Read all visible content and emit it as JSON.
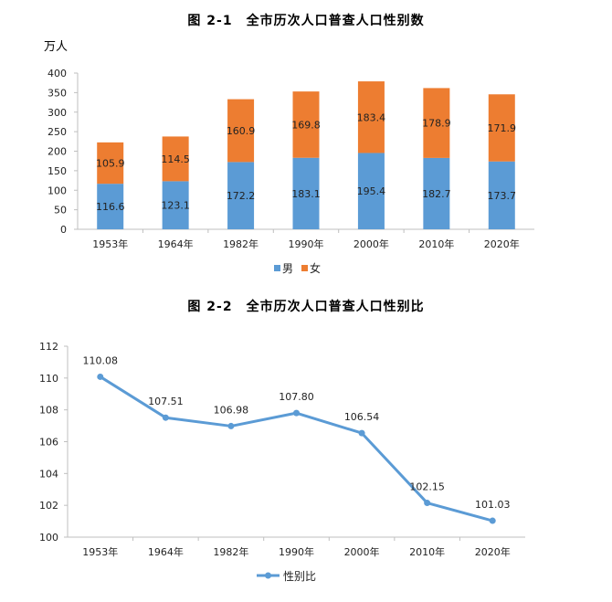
{
  "figure1": {
    "title": "图 2-1　全市历次人口普查人口性别数",
    "unit_label": "万人"
  },
  "figure2": {
    "title": "图 2-2　全市历次人口普查人口性别比"
  },
  "colors": {
    "male": "#5B9BD5",
    "female": "#ED7D31",
    "ratio_line": "#5B9BD5",
    "axis": "#BFBFBF"
  },
  "chart_data": [
    {
      "type": "bar",
      "stacked": true,
      "title": "图 2-1　全市历次人口普查人口性别数",
      "ylabel": "万人",
      "xlabel": "",
      "categories": [
        "1953年",
        "1964年",
        "1982年",
        "1990年",
        "2000年",
        "2010年",
        "2020年"
      ],
      "series": [
        {
          "name": "男",
          "values": [
            116.6,
            123.1,
            172.2,
            183.1,
            195.4,
            182.7,
            173.7
          ]
        },
        {
          "name": "女",
          "values": [
            105.9,
            114.5,
            160.9,
            169.8,
            183.4,
            178.9,
            171.9
          ]
        }
      ],
      "ylim": [
        0,
        400
      ],
      "yticks": [
        0,
        50,
        100,
        150,
        200,
        250,
        300,
        350,
        400
      ],
      "grid": false,
      "legend": "bottom"
    },
    {
      "type": "line",
      "title": "图 2-2　全市历次人口普查人口性别比",
      "xlabel": "",
      "ylabel": "",
      "categories": [
        "1953年",
        "1964年",
        "1982年",
        "1990年",
        "2000年",
        "2010年",
        "2020年"
      ],
      "series": [
        {
          "name": "性别比",
          "values": [
            110.08,
            107.51,
            106.98,
            107.8,
            106.54,
            102.15,
            101.03
          ],
          "labels": [
            "110.08",
            "107.51",
            "106.98",
            "107.80",
            "106.54",
            "102.15",
            "101.03"
          ]
        }
      ],
      "ylim": [
        100,
        112
      ],
      "yticks": [
        100,
        102,
        104,
        106,
        108,
        110,
        112
      ],
      "grid": false,
      "legend": "bottom"
    }
  ]
}
